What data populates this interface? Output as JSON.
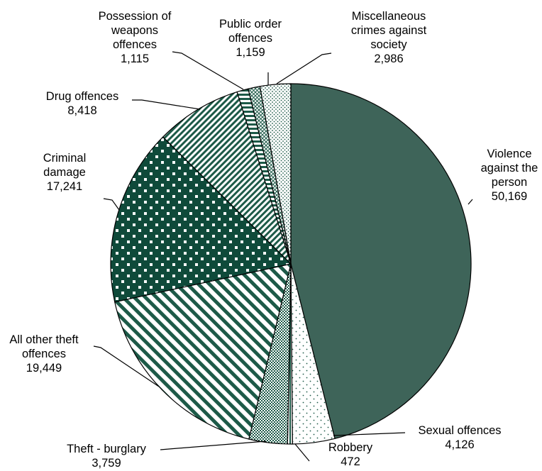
{
  "chart_data": {
    "type": "pie",
    "title": "",
    "start_angle_deg": 0,
    "direction": "clockwise",
    "slices": [
      {
        "name": "Violence against the person",
        "value": 50169,
        "label_lines": [
          "Violence",
          "against the",
          "person"
        ],
        "value_label": "50,169",
        "fill": "#3e6459",
        "pattern": "solid"
      },
      {
        "name": "Sexual offences",
        "value": 4126,
        "label_lines": [
          "Sexual offences"
        ],
        "value_label": "4,126",
        "fill": "#ffffff",
        "pattern": "sparse-dots"
      },
      {
        "name": "Robbery",
        "value": 472,
        "label_lines": [
          "Robbery"
        ],
        "value_label": "472",
        "fill": "#ffffff",
        "pattern": "vertical-stripes"
      },
      {
        "name": "Theft - burglary",
        "value": 3759,
        "label_lines": [
          "Theft - burglary"
        ],
        "value_label": "3,759",
        "fill": "#ffffff",
        "pattern": "checker"
      },
      {
        "name": "All other theft offences",
        "value": 19449,
        "label_lines": [
          "All other theft",
          "offences"
        ],
        "value_label": "19,449",
        "fill": "#ffffff",
        "pattern": "wide-diagonal"
      },
      {
        "name": "Criminal damage",
        "value": 17241,
        "label_lines": [
          "Criminal",
          "damage"
        ],
        "value_label": "17,241",
        "fill": "#0f4a3a",
        "pattern": "polka"
      },
      {
        "name": "Drug offences",
        "value": 8418,
        "label_lines": [
          "Drug offences"
        ],
        "value_label": "8,418",
        "fill": "#ffffff",
        "pattern": "fine-diagonal"
      },
      {
        "name": "Possession of weapons offences",
        "value": 1115,
        "label_lines": [
          "Possession of",
          "weapons",
          "offences"
        ],
        "value_label": "1,115",
        "fill": "#ffffff",
        "pattern": "horizontal-stripes"
      },
      {
        "name": "Public order offences",
        "value": 1159,
        "label_lines": [
          "Public order",
          "offences"
        ],
        "value_label": "1,159",
        "fill": "#ffffff",
        "pattern": "cross-hatch"
      },
      {
        "name": "Miscellaneous crimes against society",
        "value": 2986,
        "label_lines": [
          "Miscellaneous",
          "crimes against",
          "society"
        ],
        "value_label": "2,986",
        "fill": "#ffffff",
        "pattern": "dense-dots"
      }
    ],
    "colors": {
      "dark_green": "#3e6459",
      "deep_green": "#0f4a3a",
      "pattern_green": "#1d5a48",
      "outline": "#000000"
    }
  }
}
